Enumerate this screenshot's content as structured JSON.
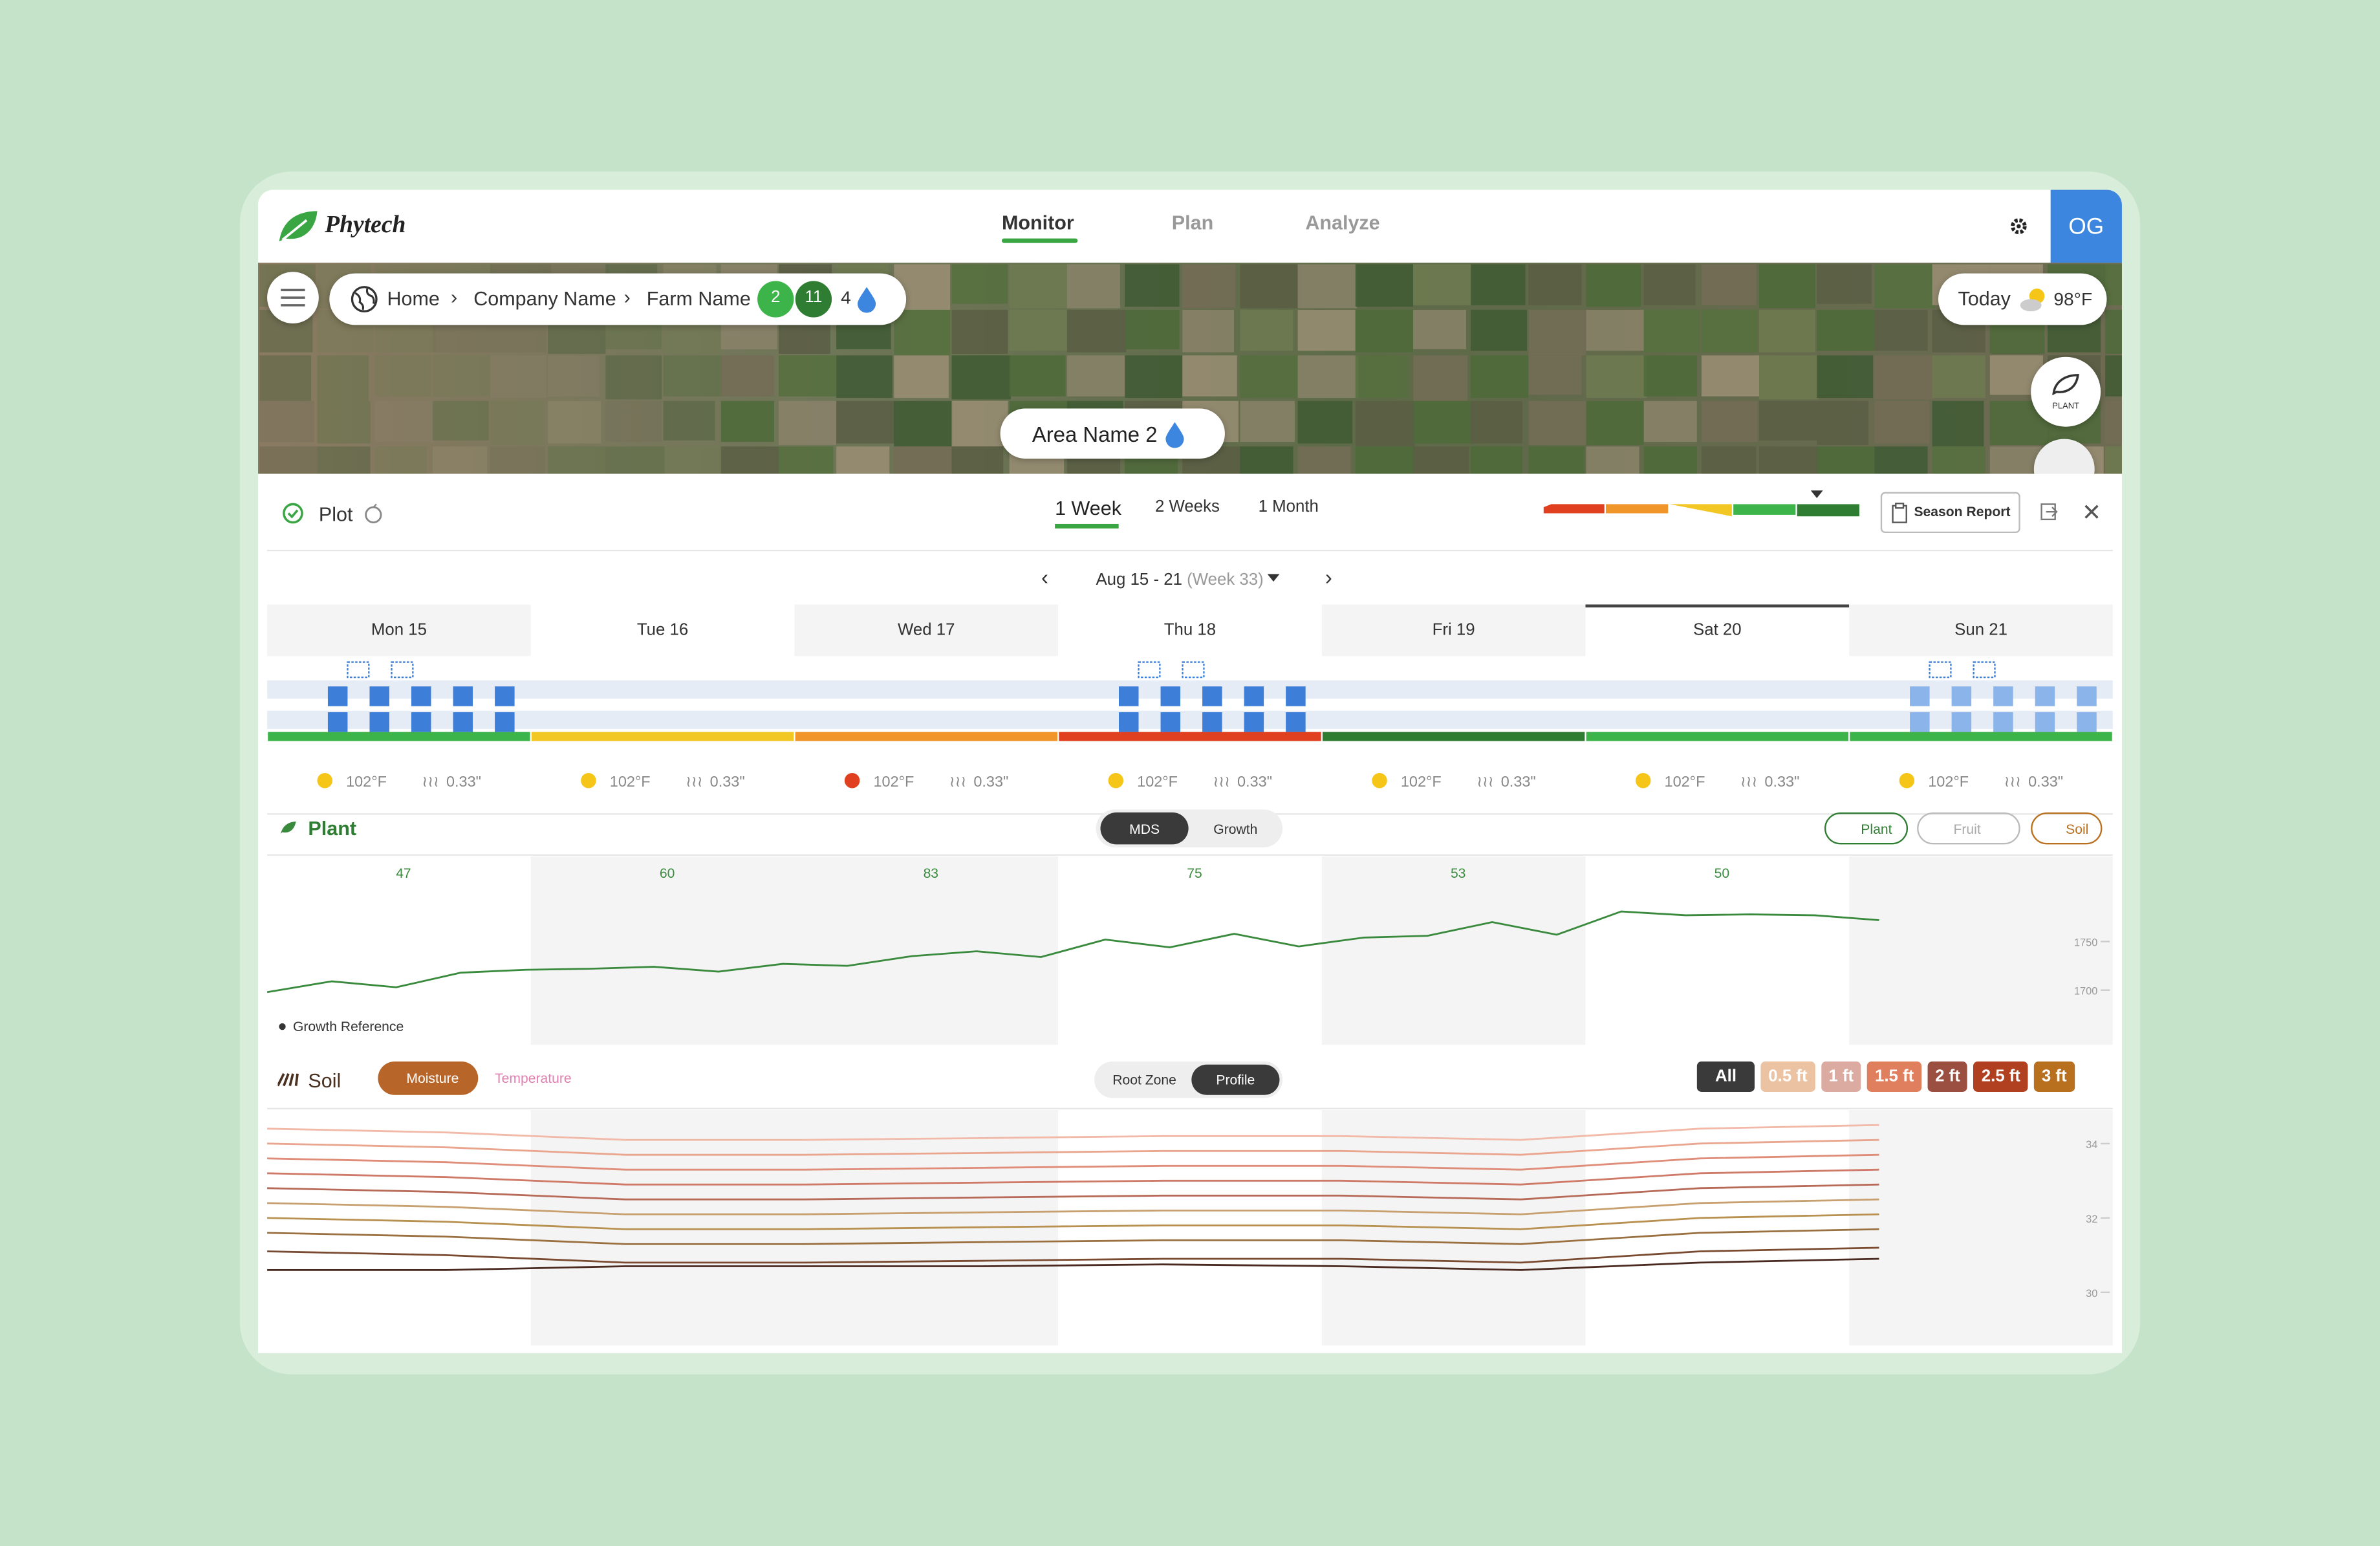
{
  "header": {
    "brand": "Phytech",
    "tabs": [
      "Monitor",
      "Plan",
      "Analyze"
    ],
    "user": "OG"
  },
  "breadcrumb": {
    "items": [
      "Home",
      "Company Name",
      "Farm Name"
    ],
    "badges": [
      "2",
      "11"
    ],
    "count": "4"
  },
  "weather_today": {
    "label": "Today",
    "temp": "98°F"
  },
  "map": {
    "plant_button": "PLANT",
    "area": "Area Name 2"
  },
  "plot": {
    "title": "Plot",
    "ranges": [
      "1 Week",
      "2 Weeks",
      "1 Month"
    ],
    "season_report": "Season Report",
    "date_range": "Aug 15 - 21",
    "week": "(Week 33)"
  },
  "days": [
    {
      "label": "Mon 15",
      "status_color": "#3cb44a",
      "temp": "102°F",
      "rain": "0.33\""
    },
    {
      "label": "Tue 16",
      "status_color": "#f2c623",
      "temp": "102°F",
      "rain": "0.33\""
    },
    {
      "label": "Wed 17",
      "status_color": "#f0952a",
      "temp": "102°F",
      "rain": "0.33\""
    },
    {
      "label": "Thu 18",
      "status_color": "#e0401f",
      "temp": "102°F",
      "rain": "0.33\""
    },
    {
      "label": "Fri 19",
      "status_color": "#2e7d32",
      "temp": "102°F",
      "rain": "0.33\""
    },
    {
      "label": "Sat 20",
      "status_color": "#3cb44a",
      "temp": "102°F",
      "rain": "0.33\""
    },
    {
      "label": "Sun 21",
      "status_color": "#3cb44a",
      "temp": "102°F",
      "rain": "0.33\""
    }
  ],
  "plant": {
    "title": "Plant",
    "toggles": [
      "MDS",
      "Growth"
    ],
    "filters": [
      "Plant",
      "Fruit",
      "Soil"
    ],
    "daily_values": [
      47,
      60,
      83,
      75,
      53,
      50
    ],
    "chart": {
      "type": "line",
      "ylim": [
        1643.75,
        1837.5
      ],
      "yticks": [
        1700,
        1750
      ],
      "legend": "Growth Reference",
      "series": [
        {
          "color": "#3a8a3e",
          "values": [
            1698,
            1709,
            1703,
            1718,
            1721,
            1722,
            1724,
            1719,
            1727,
            1725,
            1735,
            1740,
            1734,
            1752,
            1744,
            1758,
            1745,
            1754,
            1756,
            1770,
            1757,
            1781,
            1777,
            1778,
            1777,
            1772
          ]
        }
      ]
    }
  },
  "soil": {
    "title": "Soil",
    "modes": [
      "Moisture",
      "Temperature"
    ],
    "toggles": [
      "Root Zone",
      "Profile"
    ],
    "depths": [
      {
        "label": "All",
        "color": "#3a3a3a"
      },
      {
        "label": "0.5 ft",
        "color": "#ebc3a2"
      },
      {
        "label": "1 ft",
        "color": "#dbaaa0"
      },
      {
        "label": "1.5 ft",
        "color": "#e07f5e"
      },
      {
        "label": "2 ft",
        "color": "#9a4f40"
      },
      {
        "label": "2.5 ft",
        "color": "#b0401f"
      },
      {
        "label": "3 ft",
        "color": "#b8701f"
      }
    ],
    "chart": {
      "type": "line",
      "ylim": [
        28.57,
        34.9
      ],
      "yticks": [
        30,
        32,
        34
      ],
      "series": [
        {
          "color": "#f2b9a8",
          "values": [
            34.4,
            34.3,
            34.1,
            34.1,
            34.15,
            34.2,
            34.2,
            34.1,
            34.4,
            34.5
          ]
        },
        {
          "color": "#eaa58f",
          "values": [
            34.0,
            33.9,
            33.7,
            33.7,
            33.75,
            33.8,
            33.8,
            33.7,
            34.0,
            34.1
          ]
        },
        {
          "color": "#df8c78",
          "values": [
            33.6,
            33.5,
            33.3,
            33.3,
            33.35,
            33.4,
            33.4,
            33.3,
            33.6,
            33.7
          ]
        },
        {
          "color": "#cf7a68",
          "values": [
            33.2,
            33.1,
            32.9,
            32.9,
            32.95,
            33.0,
            33.0,
            32.9,
            33.2,
            33.3
          ]
        },
        {
          "color": "#b86a58",
          "values": [
            32.8,
            32.7,
            32.5,
            32.5,
            32.55,
            32.6,
            32.6,
            32.5,
            32.8,
            32.9
          ]
        },
        {
          "color": "#c8a070",
          "values": [
            32.4,
            32.3,
            32.1,
            32.1,
            32.15,
            32.2,
            32.2,
            32.1,
            32.4,
            32.5
          ]
        },
        {
          "color": "#b89050",
          "values": [
            32.0,
            31.9,
            31.7,
            31.7,
            31.75,
            31.8,
            31.8,
            31.7,
            32.0,
            32.1
          ]
        },
        {
          "color": "#9a7040",
          "values": [
            31.6,
            31.5,
            31.3,
            31.3,
            31.35,
            31.4,
            31.4,
            31.3,
            31.6,
            31.7
          ]
        },
        {
          "color": "#7a4a30",
          "values": [
            31.1,
            31.0,
            30.8,
            30.8,
            30.85,
            30.9,
            30.9,
            30.8,
            31.1,
            31.2
          ]
        },
        {
          "color": "#4a2a20",
          "values": [
            30.6,
            30.6,
            30.7,
            30.7,
            30.7,
            30.75,
            30.7,
            30.6,
            30.8,
            30.9
          ]
        }
      ]
    }
  }
}
